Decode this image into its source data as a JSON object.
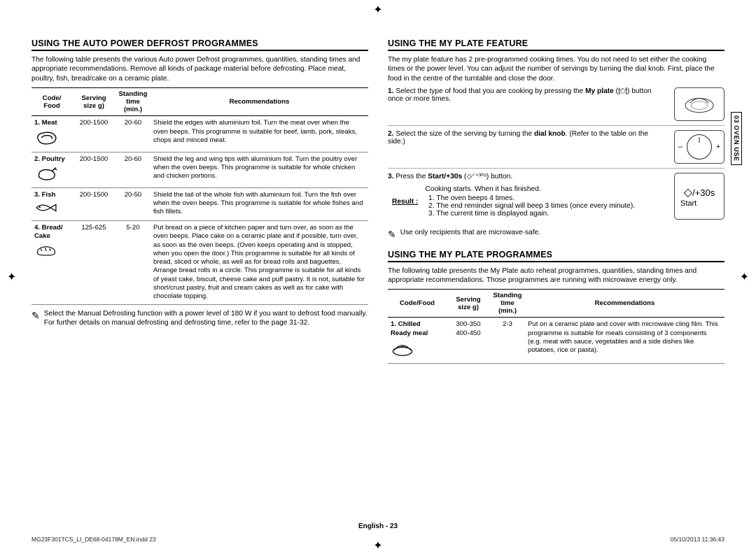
{
  "regbars": {
    "top_left": [
      "#000",
      "#1a1a1a",
      "#333",
      "#4d4d4d",
      "#666",
      "#808080",
      "#999",
      "#b3b3b3",
      "#ccc",
      "#e6e6e6"
    ],
    "top_right": [
      "#00aeef",
      "#ec008c",
      "#fff200",
      "#000000",
      "#00a651",
      "#ed1c24",
      "#0072bc",
      "#f7941d",
      "#f49ac1",
      "#bbbbbb"
    ],
    "bottom_left": [
      "#00aeef",
      "#ec008c",
      "#fff200",
      "#000000",
      "#00a651",
      "#ed1c24",
      "#0072bc",
      "#f7941d",
      "#f49ac1",
      "#bbbbbb"
    ],
    "bottom_right": [
      "#e6e6e6",
      "#ccc",
      "#b3b3b3",
      "#999",
      "#808080",
      "#666",
      "#4d4d4d",
      "#333",
      "#1a1a1a",
      "#000"
    ]
  },
  "sidebar_tab": "03  OVEN USE",
  "left": {
    "heading": "USING THE AUTO POWER DEFROST PROGRAMMES",
    "intro": "The following table presents the various Auto power Defrost programmes, quantities, standing times and appropriate recommendations. Remove all kinds of package material before defrosting. Place meat, poultry, fish, bread/cake on a ceramic plate.",
    "th": {
      "code": "Code/\nFood",
      "size": "Serving\nsize g)",
      "time": "Standing\ntime\n(min.)",
      "rec": "Recommendations"
    },
    "rows": [
      {
        "code": "1. Meat",
        "icon": "steak",
        "size": "200-1500",
        "time": "20-60",
        "rec": "Shield the edges with aluminium foil. Turn the meat over when the oven beeps. This programme is suitable for beef, lamb, pork, steaks, chops and minced meat."
      },
      {
        "code": "2. Poultry",
        "icon": "chicken",
        "size": "200-1500",
        "time": "20-60",
        "rec": "Shield the leg and wing tips with aluminium foil. Turn the poultry over when the oven beeps. This programme is suitable for whole chicken and chicken portions."
      },
      {
        "code": "3. Fish",
        "icon": "fish",
        "size": "200-1500",
        "time": "20-50",
        "rec": "Shield the tail of the whole fish with aluminium foil. Turn the fish over when the oven beeps. This programme is suitable for whole fishes and fish fillets."
      },
      {
        "code": "4. Bread/\nCake",
        "icon": "bread",
        "size": "125-625",
        "time": "5-20",
        "rec": "Put bread on a piece of kitchen paper and turn over, as soon as the oven beeps. Place cake on a ceramic plate and if possible, turn over, as soon as the oven beeps. (Oven keeps operating and is stopped, when you open the door.) This programme is suitable for all kinds of bread, sliced or whole, as well as for bread rolls and baguettes. Arrange bread rolls in a circle. This programme is suitable for all kinds of yeast cake, biscuit, cheese cake and puff pastry. It is not, suitable for short/crust pastry, fruit and cream cakes as well as for cake with chocolate topping."
      }
    ],
    "note": "Select the Manual Defrosting function with a power level of 180 W if you want to defrost food manually. For further details on manual defrosting and defrosting time, refer to the page 31-32."
  },
  "right": {
    "heading1": "USING THE MY PLATE FEATURE",
    "intro1": "The my plate feature has 2 pre-programmed cooking times. You do not need to set either the cooking times or the power level. You can adjust the number of servings by turning the dial knob. First, place the food in the centre of the turntable and close the door.",
    "step1_a": "Select the type of food that you are cooking by pressing the ",
    "step1_bold": "My plate",
    "step1_b": " (",
    "step1_c": ") button once or more times.",
    "step2_a": "Select the size of the serving by turning the ",
    "step2_bold": "dial knob",
    "step2_b": ". (Refer to the table on the side.)",
    "step3_a": "Press the ",
    "step3_bold": "Start/+30s",
    "step3_b": " (",
    "step3_c": ") button.",
    "result_label": "Result :",
    "result_text": "Cooking starts. When it has finished.",
    "result_items": [
      "The oven beeps 4 times.",
      "The end reminder signal will beep 3 times (once every minute).",
      "The current time is displayed again."
    ],
    "note2": "Use only recipients that are microwave-safe.",
    "heading2": "USING THE MY PLATE PROGRAMMES",
    "intro2": "The following table presents the My Plate auto reheat programmes, quantities, standing times and appropriate recommendations. Those programmes are running with microwave energy only.",
    "th2": {
      "code": "Code/Food",
      "size": "Serving\nsize g)",
      "time": "Standing\ntime (min.)",
      "rec": "Recommendations"
    },
    "rows2": [
      {
        "code": "1. Chilled\nReady meal",
        "icon": "meal",
        "size": "300-350\n400-450",
        "time": "2-3",
        "rec": "Put on a ceramic plate and cover with microwave cling film. This programme is suitable for meals consisting of 3 components (e.g. meat with sauce, vegetables and a side dishes like potatoes, rice or pasta)."
      }
    ],
    "start_btn": "/+30s",
    "start_lbl": "Start"
  },
  "dial": {
    "minus": "–",
    "plus": "+"
  },
  "footer": "English - 23",
  "meta_left": "MG23F301TCS_LI_DE68-04178M_EN.indd   23",
  "meta_right": "05/10/2013   11:36:43"
}
